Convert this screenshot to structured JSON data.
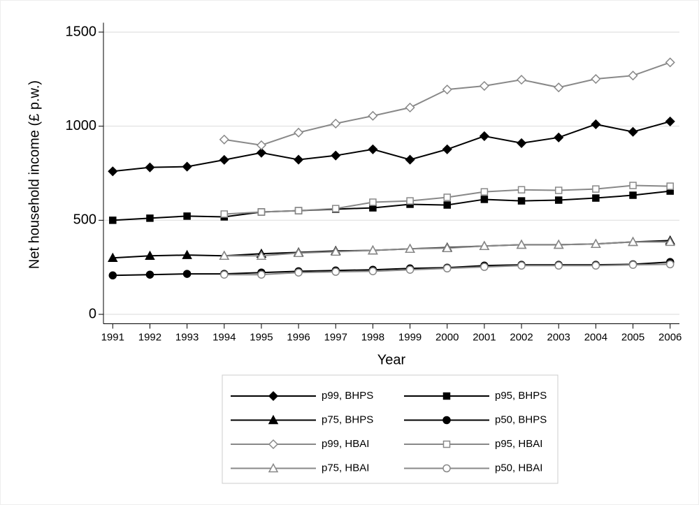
{
  "chart_data": {
    "type": "line",
    "xlabel": "Year",
    "ylabel": "Net household income (£ p.w.)",
    "x": [
      1991,
      1992,
      1993,
      1994,
      1995,
      1996,
      1997,
      1998,
      1999,
      2000,
      2001,
      2002,
      2003,
      2004,
      2005,
      2006
    ],
    "xlim": [
      1990.75,
      2006.25
    ],
    "xticks": [
      1991,
      1992,
      1993,
      1994,
      1995,
      1996,
      1997,
      1998,
      1999,
      2000,
      2001,
      2002,
      2003,
      2004,
      2005,
      2006
    ],
    "ylim": [
      -50,
      1550
    ],
    "yticks": [
      0,
      500,
      1000,
      1500
    ],
    "grid": true,
    "legend": "bottom",
    "series": [
      {
        "name": "p99, BHPS",
        "color": "#000000",
        "marker": "diamond",
        "filled": true,
        "values": [
          760,
          781,
          785,
          821,
          859,
          822,
          844,
          877,
          822,
          877,
          947,
          910,
          940,
          1010,
          970,
          1025
        ]
      },
      {
        "name": "p95, BHPS",
        "color": "#000000",
        "marker": "square",
        "filled": true,
        "values": [
          500,
          511,
          522,
          518,
          544,
          551,
          559,
          566,
          585,
          581,
          611,
          603,
          607,
          618,
          633,
          655
        ]
      },
      {
        "name": "p75, BHPS",
        "color": "#000000",
        "marker": "triangle",
        "filled": true,
        "values": [
          300,
          311,
          315,
          311,
          322,
          329,
          337,
          340,
          348,
          355,
          363,
          370,
          370,
          374,
          385,
          392
        ]
      },
      {
        "name": "p50, BHPS",
        "color": "#000000",
        "marker": "circle",
        "filled": true,
        "values": [
          207,
          211,
          215,
          215,
          222,
          229,
          233,
          237,
          244,
          248,
          259,
          263,
          263,
          263,
          266,
          278
        ]
      },
      {
        "name": "p99, HBAI",
        "color": "#888888",
        "marker": "diamond",
        "filled": false,
        "values": [
          null,
          null,
          null,
          929,
          899,
          966,
          1014,
          1055,
          1099,
          1195,
          1214,
          1247,
          1206,
          1251,
          1269,
          1339
        ]
      },
      {
        "name": "p95, HBAI",
        "color": "#888888",
        "marker": "square",
        "filled": false,
        "values": [
          null,
          null,
          null,
          533,
          544,
          551,
          562,
          596,
          603,
          622,
          651,
          662,
          659,
          666,
          685,
          681
        ]
      },
      {
        "name": "p75, HBAI",
        "color": "#888888",
        "marker": "triangle",
        "filled": false,
        "values": [
          null,
          null,
          null,
          311,
          311,
          326,
          333,
          340,
          348,
          352,
          363,
          370,
          370,
          374,
          385,
          385
        ]
      },
      {
        "name": "p50, HBAI",
        "color": "#888888",
        "marker": "circle",
        "filled": false,
        "values": [
          null,
          null,
          null,
          211,
          211,
          222,
          226,
          229,
          237,
          244,
          252,
          259,
          259,
          259,
          263,
          266
        ]
      }
    ]
  }
}
